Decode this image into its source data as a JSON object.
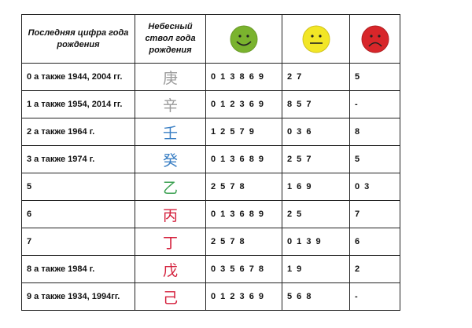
{
  "header": {
    "col1": "Последняя цифра года рождения",
    "col2": "Небесный ствол года рождения",
    "col3_icon": "happy-face-icon",
    "col4_icon": "neutral-face-icon",
    "col5_icon": "sad-face-icon"
  },
  "colors": {
    "happy": "#7ab32e",
    "neutral": "#f2e626",
    "sad": "#d8262a",
    "metal": "#9a9a9a",
    "water": "#3a7fc4",
    "wood": "#3aa050",
    "fire": "#d4203c"
  },
  "rows": [
    {
      "digit": "0 а также 1944, 2004 гг.",
      "stem": "庚",
      "color": "#9a9a9a",
      "good": "0 1 3 8 6 9",
      "neutral": "2 7",
      "bad": "5"
    },
    {
      "digit": "1 а также 1954, 2014 гг.",
      "stem": "辛",
      "color": "#9a9a9a",
      "good": "0 1 2  3 6 9",
      "neutral": "8 5 7",
      "bad": "-"
    },
    {
      "digit": "2 а также 1964 г.",
      "stem": "壬",
      "color": "#3a7fc4",
      "good": "1 2 5 7 9",
      "neutral": "0 3 6",
      "bad": "8"
    },
    {
      "digit": "3 а также 1974 г.",
      "stem": "癸",
      "color": "#3a7fc4",
      "good": "0 1 3 6 8 9",
      "neutral": "2 5 7",
      "bad": "5"
    },
    {
      "digit": "5",
      "stem": "乙",
      "color": "#3aa050",
      "good": "2 5 7 8",
      "neutral": "1 6 9",
      "bad": "0 3"
    },
    {
      "digit": "6",
      "stem": "丙",
      "color": "#d4203c",
      "good": "0 1 3 6 8 9",
      "neutral": "2 5",
      "bad": "7"
    },
    {
      "digit": "7",
      "stem": "丁",
      "color": "#d4203c",
      "good": "2 5 7 8",
      "neutral": "0 1 3 9",
      "bad": "6"
    },
    {
      "digit": "8  а также 1984 г.",
      "stem": "戊",
      "color": "#d4203c",
      "good": "0 3 5 6 7 8",
      "neutral": "1 9",
      "bad": "2"
    },
    {
      "digit": "9  а также 1934, 1994гг.",
      "stem": "己",
      "color": "#d4203c",
      "good": "0 1 2 3 6 9",
      "neutral": "5 6 8",
      "bad": "-"
    }
  ]
}
